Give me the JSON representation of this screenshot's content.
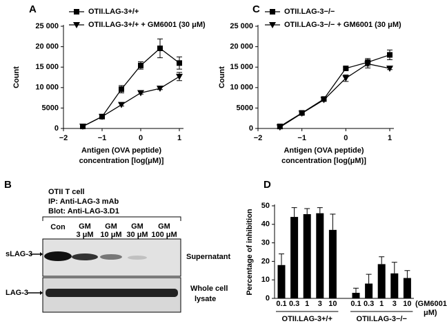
{
  "chart_data": [
    {
      "type": "line",
      "panel_label": "A",
      "ylabel": "Count",
      "xlabel": [
        "Antigen (OVA peptide)",
        "concentration [log(μM)]"
      ],
      "xlim": [
        -2,
        1
      ],
      "xticks": [
        {
          "value": -2,
          "label": "−2"
        },
        {
          "value": -1,
          "label": "−1"
        },
        0,
        1
      ],
      "ylim": [
        0,
        25000
      ],
      "yticks": [
        0,
        5000,
        {
          "value": 10000,
          "label": "10 000"
        },
        {
          "value": 15000,
          "label": "15 000"
        },
        {
          "value": 20000,
          "label": "20 000"
        },
        {
          "value": 25000,
          "label": "25 000"
        }
      ],
      "series": [
        {
          "name": "OTII.LAG-3+/+",
          "color": "#000000",
          "marker": "square",
          "x": [
            -1.5,
            -1,
            -0.5,
            0,
            0.5,
            1
          ],
          "values": [
            500,
            2900,
            9600,
            15400,
            19600,
            16000
          ],
          "errors": [
            300,
            300,
            900,
            900,
            2300,
            1500
          ]
        },
        {
          "name": "OTII.LAG-3+/+ + GM6001 (30 μM)",
          "color": "#000000",
          "marker": "triangle",
          "x": [
            -1.5,
            -1,
            -0.5,
            0,
            0.5,
            1
          ],
          "values": [
            500,
            2900,
            5800,
            8700,
            9800,
            12700
          ],
          "errors": [
            300,
            300,
            300,
            300,
            300,
            1000
          ]
        }
      ]
    },
    {
      "type": "line",
      "panel_label": "C",
      "ylabel": "Count",
      "xlabel": [
        "Antigen (OVA peptide)",
        "concentration [log(μM)]"
      ],
      "xlim": [
        -2,
        1
      ],
      "xticks": [
        {
          "value": -2,
          "label": "−2"
        },
        {
          "value": -1,
          "label": "−1"
        },
        0,
        1
      ],
      "ylim": [
        0,
        25000
      ],
      "yticks": [
        0,
        5000,
        {
          "value": 10000,
          "label": "10 000"
        },
        {
          "value": 15000,
          "label": "15 000"
        },
        {
          "value": 20000,
          "label": "20 000"
        },
        {
          "value": 25000,
          "label": "25 000"
        }
      ],
      "series": [
        {
          "name": "OTII.LAG-3−/−",
          "color": "#000000",
          "marker": "square",
          "x": [
            -1.5,
            -1,
            -0.5,
            0,
            0.5,
            1
          ],
          "values": [
            500,
            3800,
            7200,
            14700,
            16200,
            18000
          ],
          "errors": [
            600,
            300,
            500,
            300,
            900,
            1200
          ]
        },
        {
          "name": "OTII.LAG-3−/− + GM6001 (30 μM)",
          "color": "#000000",
          "marker": "triangle",
          "x": [
            -1.5,
            -1,
            -0.5,
            0,
            0.5,
            1
          ],
          "values": [
            300,
            3700,
            7000,
            12300,
            15800,
            14700
          ],
          "errors": [
            300,
            300,
            300,
            800,
            1000,
            300
          ]
        }
      ]
    },
    {
      "type": "bar",
      "panel_label": "D",
      "ylabel": "Percentage of inhibition",
      "annotation": [
        "(GM6001",
        "μM)"
      ],
      "categories": [
        "0.1",
        "0.3",
        "1",
        "3",
        "10"
      ],
      "ylim": [
        0,
        50
      ],
      "yticks": [
        0,
        10,
        20,
        30,
        40,
        50
      ],
      "series": [
        {
          "name": "OTII.LAG-3+/+",
          "color": "#000000",
          "values": [
            18,
            44,
            45.5,
            46,
            37
          ],
          "errors": [
            6,
            5,
            3,
            3,
            8.5
          ]
        },
        {
          "name": "OTII.LAG-3−/−",
          "color": "#000000",
          "values": [
            3,
            8,
            18.5,
            13.5,
            11
          ],
          "errors": [
            2.5,
            5,
            4,
            6,
            4
          ]
        }
      ]
    }
  ],
  "blot": {
    "panel_label": "B",
    "header": [
      "OTII T cell",
      "IP: Anti-LAG-3 mAb",
      "Blot: Anti-LAG-3.D1"
    ],
    "lanes": [
      [
        "Con",
        ""
      ],
      [
        "GM",
        "3 μM"
      ],
      [
        "GM",
        "10 μM"
      ],
      [
        "GM",
        "30 μM"
      ],
      [
        "GM",
        "100 μM"
      ]
    ],
    "bands": [
      "sLAG-3",
      "LAG-3"
    ],
    "fractions": [
      [
        "Supernatant"
      ],
      [
        "Whole cell",
        "lysate"
      ]
    ]
  }
}
